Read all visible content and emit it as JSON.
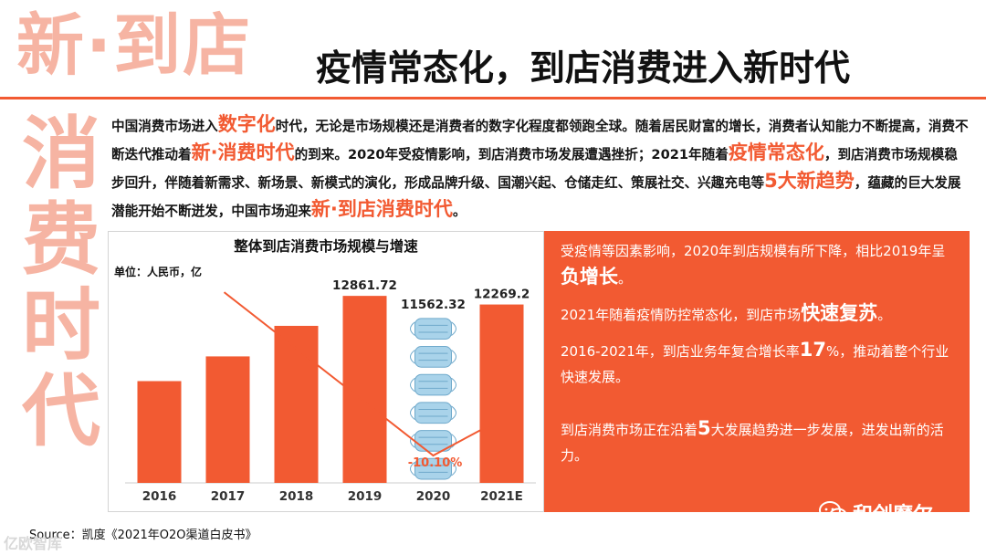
{
  "header": {
    "big_title": "新·到店",
    "headline": "疫情常态化，到店消费进入新时代"
  },
  "side_title": [
    "消",
    "费",
    "时",
    "代"
  ],
  "intro": {
    "t1": "中国消费市场进入",
    "h1": "数字化",
    "t2": "时代，无论是市场规模还是消费者的数字化程度都领跑全球。随着居民财富的增长，消费者认知能力不断提高，消费不断迭代推动着",
    "h2": "新·消费时代",
    "t3": "的到来。2020年受疫情影响，到店消费市场发展遭遇挫折；2021年随着",
    "h3": "疫情常态化",
    "t4": "，到店消费市场规模稳步回升，伴随着新需求、新场景、新模式的演化，形成品牌升级、国潮兴起、仓储走红、策展社交、兴趣充电等",
    "h4": "5大新趋势",
    "t5": "，蕴藏的巨大发展潜能开始不断迸发，中国市场迎来",
    "h5": "新·到店消费时代",
    "t6": "。"
  },
  "chart_data": {
    "type": "bar",
    "title": "整体到店消费市场规模与增速",
    "unit_label": "单位：人民币，亿",
    "categories": [
      "2016",
      "2017",
      "2018",
      "2019",
      "2020",
      "2021E"
    ],
    "values": [
      7000,
      8700,
      10800,
      12861.72,
      11562.32,
      12269.2
    ],
    "value_labels": [
      "",
      "",
      "",
      "12861.72",
      "11562.32",
      "12269.2"
    ],
    "growth_line_label": "-10.10%",
    "growth_rate_2020": -10.1,
    "bar_color": "#f25a32",
    "line_color": "#f25a32",
    "growth_label_color": "#f25a32",
    "ylim": [
      0,
      14000
    ]
  },
  "panel": {
    "p1a": "受疫情等因素影响，2020年到店规模有所下降，相比2019年呈",
    "p1b": "负增长",
    "p1c": "。",
    "p2a": "2021年随着疫情防控常态化，到店市场",
    "p2b": "快速复苏",
    "p2c": "。",
    "p3a": "2016-2021年，到店业务年复合增长率",
    "p3b": "17",
    "p3c": "%，推动着整个行业快速发展。",
    "p4a": "到店消费市场正在沿着",
    "p4b": "5",
    "p4c": "大发展趋势进一步发展，进发出新的活力。"
  },
  "watermark": "和创摩尔",
  "source": "Source：凯度《2021年O2O渠道白皮书》",
  "corner_watermark": "亿欧智库",
  "colors": {
    "accent": "#f25a32",
    "pale": "#f6b4a3"
  }
}
